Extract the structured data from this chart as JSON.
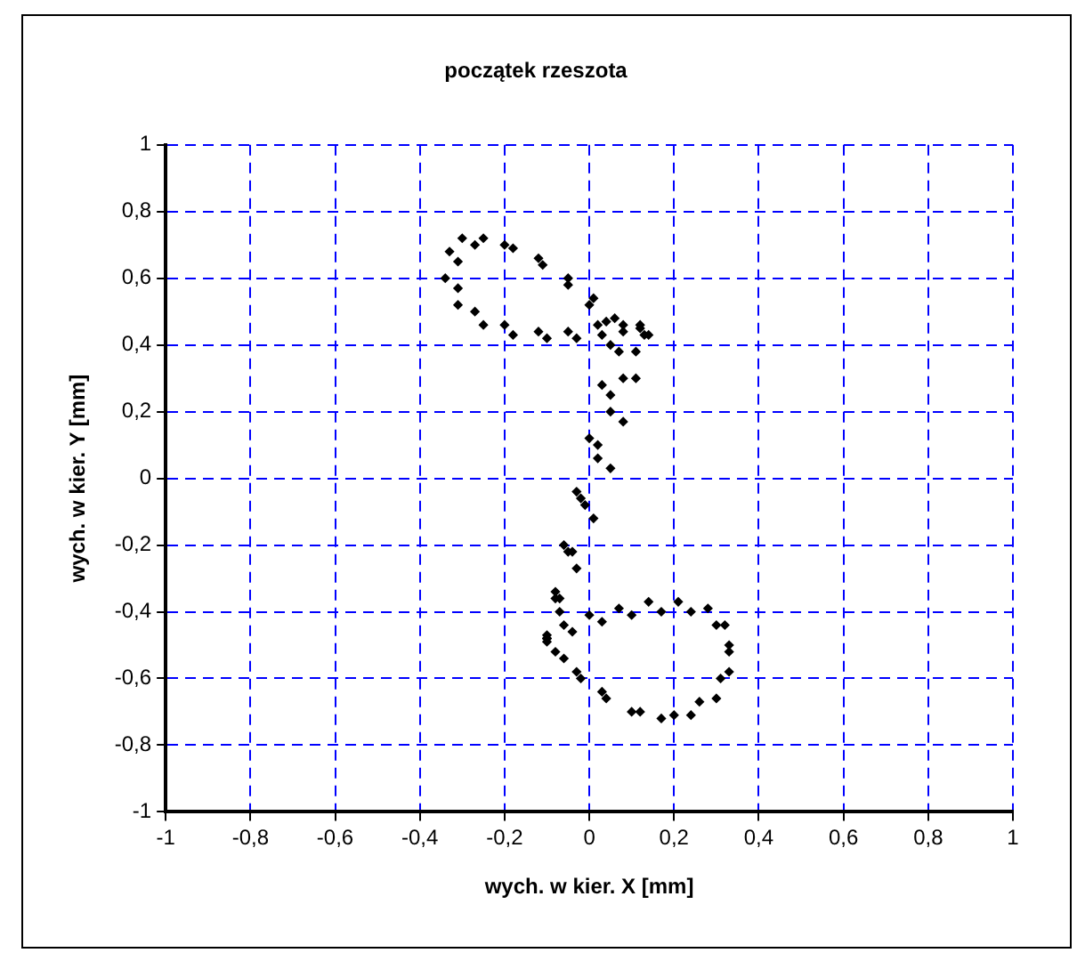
{
  "chart_data": {
    "type": "scatter",
    "title": "początek rzeszota",
    "xlabel": "wych. w kier. X [mm]",
    "ylabel": "wych. w kier. Y [mm]",
    "xlim": [
      -1,
      1
    ],
    "xticks": [
      {
        "value": -1,
        "label": "-1"
      },
      {
        "value": -0.8,
        "label": "-0,8"
      },
      {
        "value": -0.6,
        "label": "-0,6"
      },
      {
        "value": -0.4,
        "label": "-0,4"
      },
      {
        "value": -0.2,
        "label": "-0,2"
      },
      0,
      {
        "value": 0.2,
        "label": "0,2"
      },
      {
        "value": 0.4,
        "label": "0,4"
      },
      {
        "value": 0.6,
        "label": "0,6"
      },
      {
        "value": 0.8,
        "label": "0,8"
      },
      1
    ],
    "ylim": [
      -1,
      1
    ],
    "yticks": [
      {
        "value": -1,
        "label": "-1"
      },
      {
        "value": -0.8,
        "label": "-0,8"
      },
      {
        "value": -0.6,
        "label": "-0,6"
      },
      {
        "value": -0.4,
        "label": "-0,4"
      },
      {
        "value": -0.2,
        "label": "-0,2"
      },
      0,
      {
        "value": 0.2,
        "label": "0,2"
      },
      {
        "value": 0.4,
        "label": "0,4"
      },
      {
        "value": 0.6,
        "label": "0,6"
      },
      {
        "value": 0.8,
        "label": "0,8"
      },
      1
    ],
    "grid": true,
    "legend": false,
    "marker": "diamond",
    "series": [
      {
        "color": "#000000",
        "x": [
          -0.1,
          -0.07,
          -0.04,
          -0.01,
          0.02,
          0.05,
          0.08,
          0.11,
          0.13,
          0.12,
          0.08,
          0.03,
          -0.03,
          -0.1,
          -0.18,
          -0.25,
          -0.31,
          -0.34,
          -0.33,
          -0.3,
          -0.25,
          -0.18,
          -0.11,
          -0.05,
          0,
          0.04,
          0.05,
          0.03,
          0,
          -0.03,
          -0.06,
          -0.08,
          -0.1,
          -0.06,
          0,
          0.07,
          0.14,
          0.21,
          0.28,
          0.32,
          0.33,
          0.31,
          0.26,
          0.2,
          0.12,
          0.04,
          -0.02,
          -0.06,
          -0.1,
          -0.07,
          -0.03,
          0.01,
          0.05,
          0.08,
          0.11,
          0.14,
          0.12,
          0.08,
          0.02,
          -0.05,
          -0.12,
          -0.2,
          -0.27,
          -0.31,
          -0.31,
          -0.27,
          -0.2,
          -0.12,
          -0.05,
          0.01,
          0.06,
          0.07,
          0.05,
          0.02,
          -0.02,
          -0.05,
          -0.08,
          -0.1,
          -0.04,
          0.03,
          0.1,
          0.17,
          0.24,
          0.3,
          0.33,
          0.33,
          0.3,
          0.24,
          0.17,
          0.1,
          0.03,
          -0.03,
          -0.08,
          -0.1
        ],
        "values": [
          -0.48,
          -0.36,
          -0.22,
          -0.08,
          0.06,
          0.2,
          0.3,
          0.38,
          0.43,
          0.45,
          0.44,
          0.43,
          0.42,
          0.42,
          0.43,
          0.46,
          0.52,
          0.6,
          0.68,
          0.72,
          0.72,
          0.69,
          0.64,
          0.58,
          0.52,
          0.47,
          0.4,
          0.28,
          0.12,
          -0.04,
          -0.2,
          -0.34,
          -0.47,
          -0.44,
          -0.41,
          -0.39,
          -0.37,
          -0.37,
          -0.39,
          -0.44,
          -0.52,
          -0.6,
          -0.67,
          -0.71,
          -0.7,
          -0.66,
          -0.6,
          -0.54,
          -0.49,
          -0.4,
          -0.27,
          -0.12,
          0.03,
          0.17,
          0.3,
          0.43,
          0.46,
          0.46,
          0.46,
          0.44,
          0.44,
          0.46,
          0.5,
          0.57,
          0.65,
          0.7,
          0.7,
          0.66,
          0.6,
          0.54,
          0.48,
          0.38,
          0.25,
          0.1,
          -0.06,
          -0.22,
          -0.36,
          -0.48,
          -0.46,
          -0.43,
          -0.41,
          -0.4,
          -0.4,
          -0.44,
          -0.5,
          -0.58,
          -0.66,
          -0.71,
          -0.72,
          -0.7,
          -0.64,
          -0.58,
          -0.52,
          -0.48
        ]
      }
    ]
  }
}
